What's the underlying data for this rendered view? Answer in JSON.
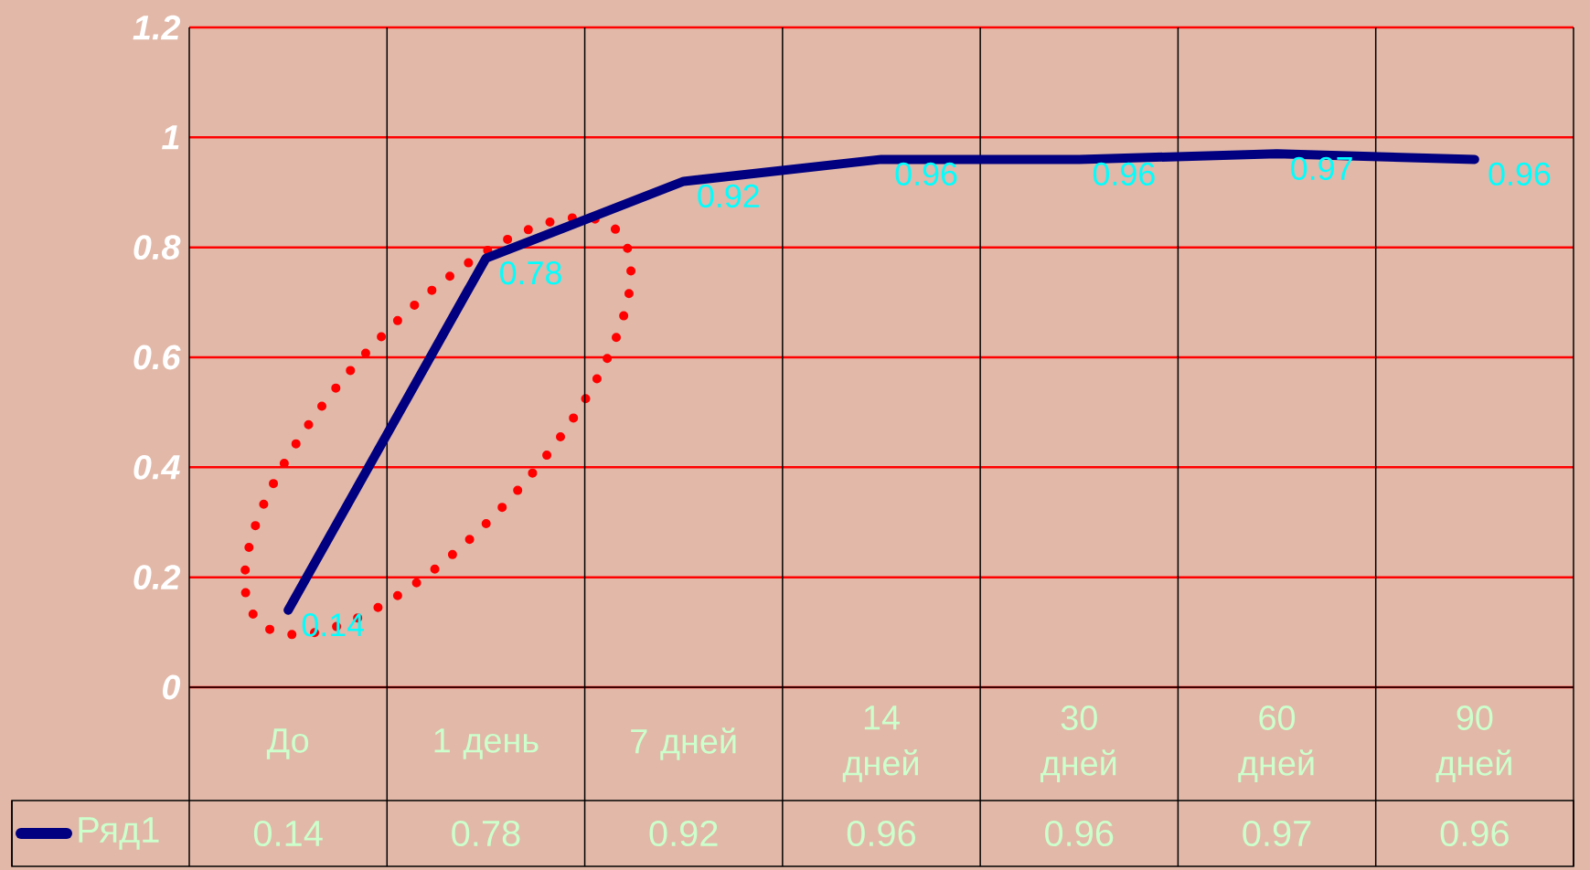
{
  "chart_data": {
    "type": "line",
    "categories": [
      "До",
      "1 день",
      "7 дней",
      "14 дней",
      "30 дней",
      "60 дней",
      "90 дней"
    ],
    "series": [
      {
        "name": "Ряд1",
        "color": "#000080",
        "values": [
          0.14,
          0.78,
          0.92,
          0.96,
          0.96,
          0.97,
          0.96
        ],
        "value_labels": [
          "0.14",
          "0.78",
          "0.92",
          "0.96",
          "0.96",
          "0.97",
          "0.96"
        ]
      }
    ],
    "ylim": [
      0,
      1.2
    ],
    "yticks": [
      0,
      0.2,
      0.4,
      0.6,
      0.8,
      1,
      1.2
    ],
    "grid": true,
    "data_labels": true,
    "legend": "bottom",
    "marker": "none",
    "line_style": "solid"
  }
}
